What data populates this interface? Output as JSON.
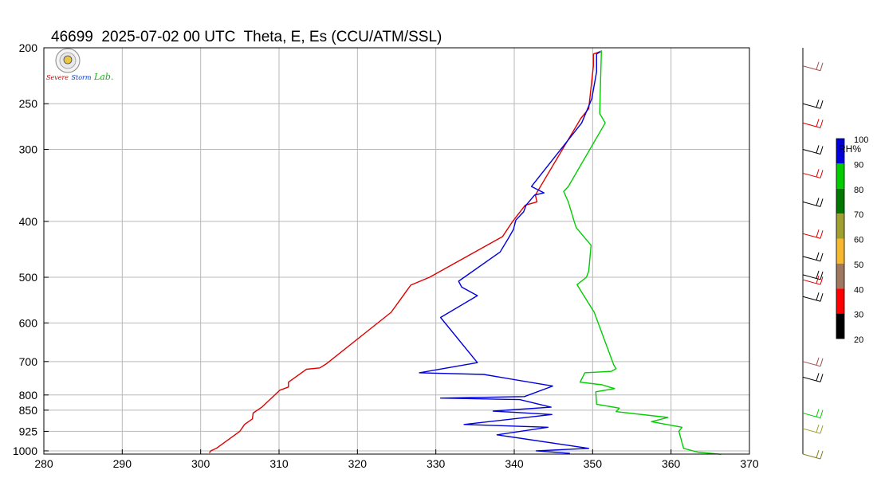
{
  "title": "46699  2025-07-02 00 UTC  Theta, E, Es (CCU/ATM/SSL)",
  "logo": {
    "text_s": "Severe",
    "text_storm": "Storm",
    "text_lab": "Lab."
  },
  "chart_data": {
    "type": "line",
    "title": "46699  2025-07-02 00 UTC  Theta, E, Es (CCU/ATM/SSL)",
    "xlabel": "",
    "ylabel": "",
    "xlim": [
      280,
      370
    ],
    "ylim": [
      1013,
      200
    ],
    "y_scale": "log-pressure",
    "grid": true,
    "x_ticks": [
      280,
      290,
      300,
      310,
      320,
      330,
      340,
      350,
      360,
      370
    ],
    "y_ticks": [
      200,
      250,
      300,
      400,
      500,
      600,
      700,
      800,
      850,
      925,
      1000
    ],
    "series": [
      {
        "color": "#e00000",
        "points": [
          [
            301.1,
            1008
          ],
          [
            301.3,
            1000
          ],
          [
            302,
            990
          ],
          [
            305,
            925
          ],
          [
            305.6,
            900
          ],
          [
            306.6,
            880
          ],
          [
            306.7,
            860
          ],
          [
            307.8,
            840
          ],
          [
            310.1,
            785
          ],
          [
            311.2,
            775
          ],
          [
            311.2,
            760
          ],
          [
            313.5,
            722
          ],
          [
            315.2,
            718
          ],
          [
            316,
            707
          ],
          [
            324.3,
            575
          ],
          [
            326.8,
            516
          ],
          [
            329.2,
            500
          ],
          [
            338.5,
            425
          ],
          [
            339.8,
            400
          ],
          [
            341.4,
            375
          ],
          [
            342.9,
            370
          ],
          [
            342.7,
            360
          ],
          [
            348.5,
            265
          ],
          [
            349.5,
            255
          ],
          [
            350.1,
            215
          ],
          [
            350.1,
            205
          ],
          [
            351,
            203
          ]
        ]
      },
      {
        "color": "#0000dd",
        "points": [
          [
            347.1,
            1010
          ],
          [
            342.8,
            1000
          ],
          [
            349.5,
            990
          ],
          [
            337.8,
            938
          ],
          [
            344.3,
            910
          ],
          [
            333.6,
            900
          ],
          [
            344.8,
            865
          ],
          [
            337.3,
            853
          ],
          [
            344.7,
            840
          ],
          [
            340.7,
            815
          ],
          [
            330.6,
            810
          ],
          [
            341.3,
            805
          ],
          [
            344.9,
            772
          ],
          [
            336.1,
            737
          ],
          [
            327.9,
            732
          ],
          [
            335.3,
            703
          ],
          [
            330.6,
            587
          ],
          [
            335.3,
            538
          ],
          [
            333.3,
            520
          ],
          [
            332.9,
            508
          ],
          [
            338.2,
            452
          ],
          [
            339.3,
            427
          ],
          [
            339.9,
            413
          ],
          [
            340.2,
            398
          ],
          [
            341.2,
            385
          ],
          [
            341.5,
            375
          ],
          [
            342.6,
            360
          ],
          [
            343.8,
            357
          ],
          [
            342.2,
            348
          ],
          [
            348.6,
            270
          ],
          [
            349.9,
            245
          ],
          [
            350.5,
            220
          ],
          [
            350.5,
            205
          ],
          [
            351,
            203
          ]
        ]
      },
      {
        "color": "#00cc00",
        "points": [
          [
            366.4,
            1014
          ],
          [
            363.4,
            1005
          ],
          [
            361.6,
            990
          ],
          [
            361,
            925
          ],
          [
            361.4,
            910
          ],
          [
            357.5,
            890
          ],
          [
            359.6,
            875
          ],
          [
            353,
            855
          ],
          [
            353.4,
            843
          ],
          [
            350.5,
            830
          ],
          [
            350.4,
            790
          ],
          [
            352.8,
            780
          ],
          [
            351.2,
            768
          ],
          [
            348.4,
            760
          ],
          [
            349,
            732
          ],
          [
            352.4,
            728
          ],
          [
            353,
            720
          ],
          [
            352.7,
            710
          ],
          [
            350.2,
            575
          ],
          [
            348,
            515
          ],
          [
            349.2,
            500
          ],
          [
            349.5,
            488
          ],
          [
            349.8,
            440
          ],
          [
            349.3,
            432
          ],
          [
            347.9,
            410
          ],
          [
            347.6,
            398
          ],
          [
            346.9,
            370
          ],
          [
            346.3,
            355
          ],
          [
            346.9,
            348
          ],
          [
            351.6,
            270
          ],
          [
            350.9,
            260
          ],
          [
            351.1,
            205
          ],
          [
            351.1,
            202
          ]
        ]
      }
    ],
    "colorbar": {
      "label": "RH%",
      "ticks": [
        "100",
        "90",
        "80",
        "70",
        "60",
        "50",
        "40",
        "30",
        "20"
      ],
      "colors": [
        "#0000dd",
        "#00cc00",
        "#007700",
        "#a0a030",
        "#f5b82e",
        "#a07860",
        "#ff0000",
        "#000000"
      ]
    },
    "wind_barbs": [
      {
        "p": 215,
        "color": "#a05050"
      },
      {
        "p": 250,
        "color": "#000000"
      },
      {
        "p": 270,
        "color": "#e00000"
      },
      {
        "p": 300,
        "color": "#000000"
      },
      {
        "p": 330,
        "color": "#e00000"
      },
      {
        "p": 370,
        "color": "#000000"
      },
      {
        "p": 420,
        "color": "#e00000"
      },
      {
        "p": 460,
        "color": "#000000"
      },
      {
        "p": 495,
        "color": "#000000"
      },
      {
        "p": 505,
        "color": "#e00000"
      },
      {
        "p": 540,
        "color": "#000000"
      },
      {
        "p": 700,
        "color": "#a05050"
      },
      {
        "p": 745,
        "color": "#000000"
      },
      {
        "p": 860,
        "color": "#00cc00"
      },
      {
        "p": 915,
        "color": "#a0a030"
      },
      {
        "p": 1013,
        "color": "#808020"
      }
    ]
  }
}
